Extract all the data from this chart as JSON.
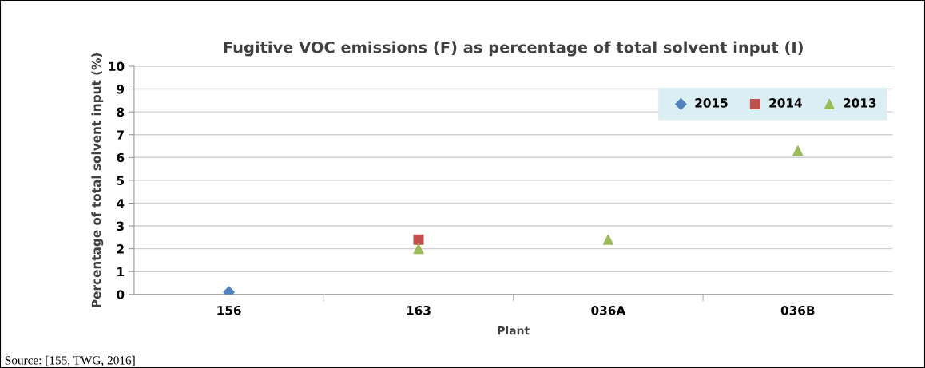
{
  "chart_data": {
    "type": "scatter",
    "title": "Fugitive VOC emissions (F) as percentage of total solvent input (I)",
    "xlabel": "Plant",
    "ylabel": "Percentage of total solvent input (%)",
    "categories": [
      "156",
      "163",
      "036A",
      "036B"
    ],
    "series": [
      {
        "name": "2015",
        "color": "#4f81bd",
        "marker": "diamond",
        "values": [
          0.1,
          null,
          null,
          null
        ]
      },
      {
        "name": "2014",
        "color": "#c0504d",
        "marker": "square",
        "values": [
          null,
          2.4,
          null,
          null
        ]
      },
      {
        "name": "2013",
        "color": "#9bbb59",
        "marker": "triangle",
        "values": [
          null,
          2.0,
          2.4,
          6.3
        ]
      }
    ],
    "ylim": [
      0,
      10
    ],
    "yticks": [
      0,
      1,
      2,
      3,
      4,
      5,
      6,
      7,
      8,
      9,
      10
    ],
    "grid": "y",
    "legend": "top right",
    "annotations": [
      "Source: [155, TWG, 2016]"
    ]
  }
}
